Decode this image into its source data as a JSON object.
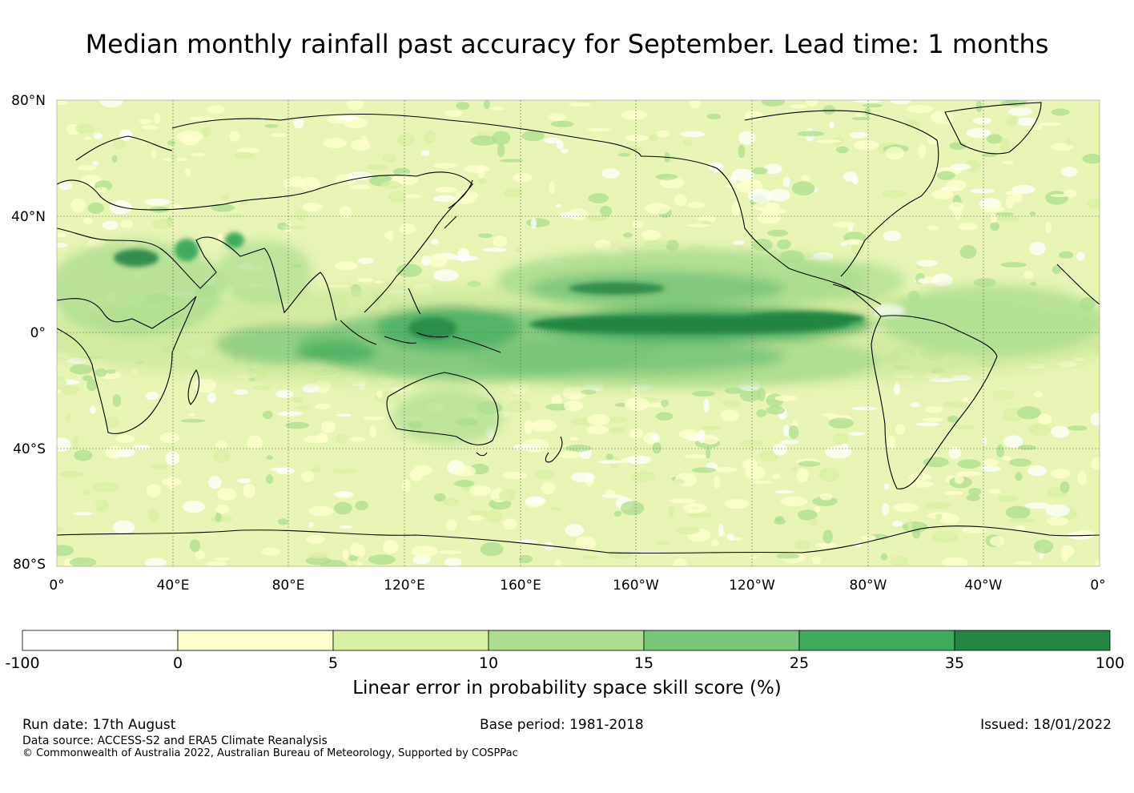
{
  "title": "Median monthly rainfall past accuracy for September. Lead time: 1 months",
  "map": {
    "lat_labels": [
      "80°N",
      "40°N",
      "0°",
      "40°S",
      "80°S"
    ],
    "lon_labels": [
      "0°",
      "40°E",
      "80°E",
      "120°E",
      "160°E",
      "160°W",
      "120°W",
      "80°W",
      "40°W",
      "0°"
    ],
    "grid": true,
    "projection": "equirectangular"
  },
  "colorbar": {
    "ticks": [
      "-100",
      "0",
      "5",
      "10",
      "15",
      "25",
      "35",
      "100"
    ],
    "colors": [
      "#ffffff",
      "#ffffcc",
      "#d9f0a3",
      "#addd8e",
      "#78c679",
      "#41ab5d",
      "#238443"
    ],
    "label": "Linear error in probability space skill score (%)"
  },
  "footer": {
    "run_date": "Run date: 17th August",
    "base_period": "Base period: 1981-2018",
    "issued": "Issued: 18/01/2022",
    "data_source": "Data source: ACCESS-S2 and ERA5 Climate Reanalysis",
    "copyright": "© Commonwealth of Australia 2022, Australian Bureau of Meteorology, Supported by COSPPac"
  }
}
